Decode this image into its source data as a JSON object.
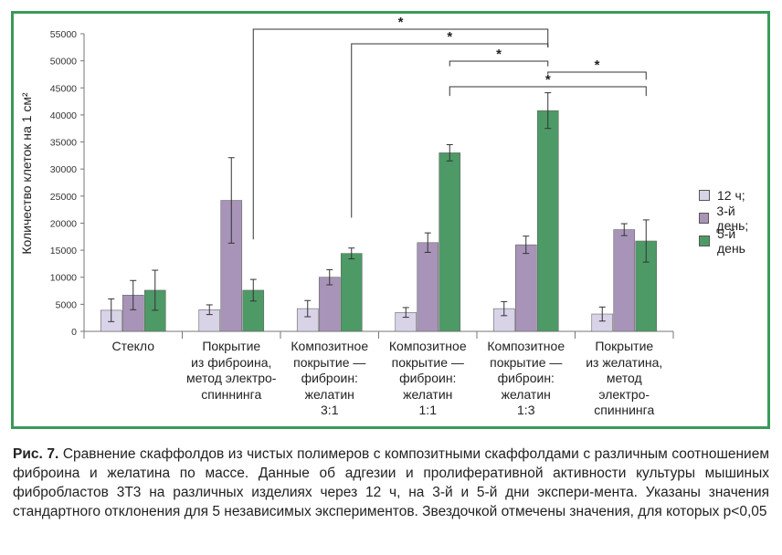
{
  "chart_data": {
    "type": "bar",
    "ylabel": "Количество клеток на 1 см²",
    "ylim": [
      0,
      55000
    ],
    "yticks": [
      0,
      5000,
      10000,
      15000,
      20000,
      25000,
      30000,
      35000,
      40000,
      45000,
      50000,
      55000
    ],
    "categories": [
      "Стекло",
      "Покрытие из фиброина, метод электро-спиннинга",
      "Композитное покрытие — фиброин: желатин 3:1",
      "Композитное покрытие — фиброин: желатин 1:1",
      "Композитное покрытие — фиброин: желатин 1:3",
      "Покрытие из желатина, метод электро-спиннинга"
    ],
    "category_lines": [
      [
        "Стекло"
      ],
      [
        "Покрытие",
        "из фиброина,",
        "метод электро-",
        "спиннинга"
      ],
      [
        "Композитное",
        "покрытие —",
        "фиброин:",
        "желатин",
        "3:1"
      ],
      [
        "Композитное",
        "покрытие —",
        "фиброин:",
        "желатин",
        "1:1"
      ],
      [
        "Композитное",
        "покрытие —",
        "фиброин:",
        "желатин",
        "1:3"
      ],
      [
        "Покрытие",
        "из желатина,",
        "метод",
        "электро-",
        "спиннинга"
      ]
    ],
    "series": [
      {
        "name": "12 ч;",
        "color": "#d9d3e8",
        "values": [
          3900,
          4000,
          4200,
          3500,
          4200,
          3200
        ],
        "errors": [
          2100,
          900,
          1500,
          900,
          1300,
          1300
        ]
      },
      {
        "name": "3-й день;",
        "color": "#a894b8",
        "values": [
          6700,
          24200,
          10000,
          16400,
          16000,
          18800
        ],
        "errors": [
          2700,
          7900,
          1400,
          1800,
          1600,
          1100
        ]
      },
      {
        "name": "5-й день",
        "color": "#4e9a67",
        "values": [
          7600,
          7600,
          14400,
          33000,
          40800,
          16700
        ],
        "errors": [
          3700,
          2000,
          1000,
          1500,
          3300,
          3900
        ]
      }
    ],
    "significance": [
      {
        "label": "*",
        "from_category": 1,
        "to_category": 4
      },
      {
        "label": "*",
        "from_category": 2,
        "to_category": 4
      },
      {
        "label": "*",
        "from_category": 3,
        "to_category": 4
      },
      {
        "label": "*",
        "from_category": 4,
        "to_category": 5
      },
      {
        "label": "*",
        "from_category": 3,
        "to_category": 5
      }
    ],
    "legend_position": "right",
    "grid": false
  },
  "caption": {
    "label": "Рис. 7.",
    "text": "Сравнение скаффолдов из чистых полимеров с композитными скаффолдами с различным соотношением фиброина и желатина по массе. Данные об адгезии и пролиферативной активности культуры мышиных фибробластов 3Т3 на различных изделиях через 12 ч, на 3-й и 5-й дни экспери-мента. Указаны значения стандартного отклонения для 5 независимых экспериментов. Звездочкой отмечены значения, для которых p<0,05"
  }
}
